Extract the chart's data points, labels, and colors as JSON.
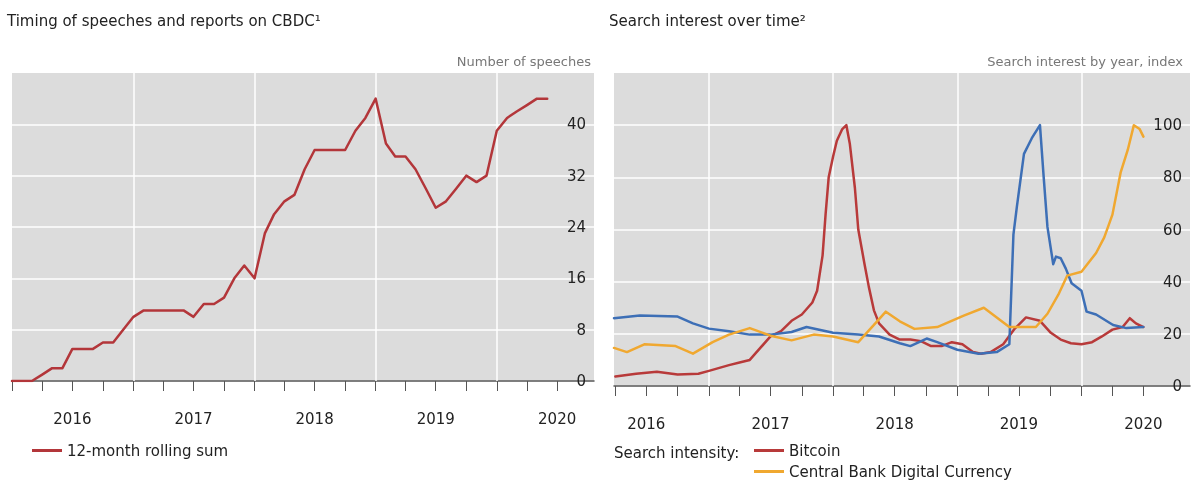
{
  "chart_data": [
    {
      "type": "line",
      "title": "Timing of speeches and reports on CBDC¹",
      "ylabel": "Number of speeches",
      "x": [
        "2016-01",
        "2016-02",
        "2016-03",
        "2016-04",
        "2016-05",
        "2016-06",
        "2016-07",
        "2016-08",
        "2016-09",
        "2016-10",
        "2016-11",
        "2016-12",
        "2017-01",
        "2017-02",
        "2017-03",
        "2017-04",
        "2017-05",
        "2017-06",
        "2017-07",
        "2017-08",
        "2017-09",
        "2017-10",
        "2017-11",
        "2017-12",
        "2018-01",
        "2018-02",
        "2018-03",
        "2018-04",
        "2018-05",
        "2018-06",
        "2018-07",
        "2018-08",
        "2018-09",
        "2018-10",
        "2018-11",
        "2018-12",
        "2019-01",
        "2019-02",
        "2019-03",
        "2019-04",
        "2019-05",
        "2019-06",
        "2019-07",
        "2019-08",
        "2019-09",
        "2019-10",
        "2019-11",
        "2019-12",
        "2020-01",
        "2020-02",
        "2020-03",
        "2020-04",
        "2020-05",
        "2020-06"
      ],
      "series": [
        {
          "name": "12-month rolling sum",
          "color": "#b3363a",
          "values": [
            0,
            0,
            0,
            1,
            2,
            2,
            5,
            5,
            5,
            6,
            6,
            8,
            10,
            11,
            11,
            11,
            11,
            11,
            10,
            12,
            12,
            13,
            16,
            18,
            16,
            23,
            26,
            28,
            29,
            33,
            36,
            36,
            36,
            36,
            39,
            41,
            44,
            37,
            35,
            35,
            33,
            30,
            27,
            28,
            30,
            32,
            31,
            32,
            39,
            41,
            42,
            43,
            44,
            44
          ]
        }
      ],
      "xlim": [
        "2016-01",
        "2020-10-20"
      ],
      "xticks": [
        {
          "value": "2016-01",
          "label": null
        },
        {
          "value": "2016-04",
          "label": null
        },
        {
          "value": "2016-07",
          "label": "2016"
        },
        {
          "value": "2016-10",
          "label": null
        },
        {
          "value": "2017-01",
          "label": null
        },
        {
          "value": "2017-04",
          "label": null
        },
        {
          "value": "2017-07",
          "label": "2017"
        },
        {
          "value": "2017-10",
          "label": null
        },
        {
          "value": "2018-01",
          "label": null
        },
        {
          "value": "2018-04",
          "label": null
        },
        {
          "value": "2018-07",
          "label": "2018"
        },
        {
          "value": "2018-10",
          "label": null
        },
        {
          "value": "2019-01",
          "label": null
        },
        {
          "value": "2019-04",
          "label": null
        },
        {
          "value": "2019-07",
          "label": "2019"
        },
        {
          "value": "2019-10",
          "label": null
        },
        {
          "value": "2020-01",
          "label": null
        },
        {
          "value": "2020-04",
          "label": null
        },
        {
          "value": "2020-07",
          "label": "2020"
        }
      ],
      "ylim": [
        0,
        48
      ],
      "yticks": [
        0,
        8,
        16,
        24,
        32,
        40
      ],
      "grid": "y",
      "legend": "bottom left",
      "marker": "none",
      "line_style": "solid",
      "ref_lines": [
        {
          "axis": "x",
          "value": "2017-01",
          "color": "#ffffff"
        },
        {
          "axis": "x",
          "value": "2018-01",
          "color": "#ffffff"
        },
        {
          "axis": "x",
          "value": "2019-01",
          "color": "#ffffff"
        },
        {
          "axis": "x",
          "value": "2020-01",
          "color": "#ffffff"
        }
      ]
    },
    {
      "type": "line",
      "title": "Search interest over time²",
      "ylabel": "Search interest by year, index",
      "legend_title": "Search intensity:",
      "series": [
        {
          "name": "Bitcoin",
          "color": "#b83a3a",
          "x": [
            "2016-04",
            "2016-06",
            "2016-08",
            "2016-10",
            "2016-12",
            "2017-01",
            "2017-03",
            "2017-04",
            "2017-05",
            "2017-06",
            "2017-07",
            "2017-08",
            "2017-09",
            "2017-10",
            "2017-11",
            "2017-11-15",
            "2017-12",
            "2017-12-10",
            "2017-12-19",
            "2018-01",
            "2018-01-12",
            "2018-01-28",
            "2018-02-09",
            "2018-02-19",
            "2018-03-06",
            "2018-03-16",
            "2018-04-03",
            "2018-04-16",
            "2018-05",
            "2018-05-16",
            "2018-06-16",
            "2018-07-16",
            "2018-08-16",
            "2018-09-16",
            "2018-10-16",
            "2018-11-16",
            "2018-12-16",
            "2019-01-16",
            "2019-02-16",
            "2019-03-12",
            "2019-04-09",
            "2019-05-16",
            "2019-06-19",
            "2019-07-22",
            "2019-09",
            "2019-10-03",
            "2019-11",
            "2019-12",
            "2020-01",
            "2020-02",
            "2020-03",
            "2020-04",
            "2020-05",
            "2020-05-22",
            "2020-06-09",
            "2020-07"
          ],
          "values": [
            3.6,
            4.7,
            5.5,
            4.4,
            4.7,
            5.8,
            8,
            9,
            10,
            14.6,
            19,
            21,
            25,
            27.4,
            32,
            36.5,
            50,
            66,
            80,
            88,
            94,
            98.5,
            100,
            93,
            76,
            60,
            47,
            38,
            29,
            24,
            19.7,
            17.8,
            17.8,
            17.2,
            15.3,
            15.3,
            16.8,
            16,
            13,
            12.4,
            13,
            16,
            22,
            26.3,
            25,
            20.4,
            17.8,
            16.4,
            16,
            16.8,
            19,
            21.6,
            22.6,
            26,
            24,
            22.6
          ]
        },
        {
          "color": "#3d6fb6",
          "x": [
            "2016-03-28",
            "2016-06-12",
            "2016-10",
            "2016-11-15",
            "2017-01",
            "2017-03",
            "2017-05",
            "2017-07",
            "2017-09",
            "2017-10-15",
            "2018-01",
            "2018-03-16",
            "2018-05-16",
            "2018-07-16",
            "2018-08-16",
            "2018-10-03",
            "2018-11-03",
            "2019-01",
            "2019-03-05",
            "2019-04-27",
            "2019-06-03",
            "2019-06-15",
            "2019-06-25",
            "2019-07-16",
            "2019-08-08",
            "2019-09",
            "2019-09-12",
            "2019-09-23",
            "2019-10-10",
            "2019-10-18",
            "2019-11",
            "2019-11-16",
            "2019-12-03",
            "2020-01",
            "2020-01-16",
            "2020-02-13",
            "2020-04-03",
            "2020-05-12",
            "2020-07"
          ],
          "values": [
            26,
            27,
            26.6,
            24,
            22,
            21,
            19.7,
            19.7,
            20.7,
            22.6,
            20.4,
            19.7,
            19,
            16.4,
            15.3,
            18.2,
            16.8,
            13.9,
            12.4,
            13,
            16,
            58,
            68.6,
            89,
            95,
            100,
            80,
            61,
            46.7,
            49.6,
            49,
            45,
            39.4,
            36.5,
            28.5,
            27.4,
            23.4,
            22.2,
            22.6
          ]
        },
        {
          "name": "Central Bank Digital Currency",
          "color": "#f0a830",
          "x": [
            "2016-03-28",
            "2016-05-05",
            "2016-06-25",
            "2016-09-25",
            "2016-11-15",
            "2017-01-12",
            "2017-03",
            "2017-05",
            "2017-07",
            "2017-09",
            "2017-11-05",
            "2018-01",
            "2018-03-16",
            "2018-05",
            "2018-06-05",
            "2018-07-16",
            "2018-08-28",
            "2018-11-03",
            "2019-01-20",
            "2019-03-20",
            "2019-04-27",
            "2019-06-03",
            "2019-07-16",
            "2019-08-20",
            "2019-09-23",
            "2019-10-25",
            "2019-11-20",
            "2020-01",
            "2020-02-13",
            "2020-03-08",
            "2020-04-01",
            "2020-04-25",
            "2020-05-16",
            "2020-06-03",
            "2020-06-20",
            "2020-07"
          ],
          "values": [
            14.6,
            13,
            16,
            15.3,
            12.4,
            16.8,
            19.7,
            22.2,
            19.3,
            17.5,
            19.7,
            19,
            16.8,
            23.4,
            28.5,
            24.8,
            21.9,
            22.6,
            27,
            30,
            26.3,
            22.6,
            22.6,
            22.6,
            27.7,
            35,
            42.3,
            43.8,
            51,
            57,
            65.7,
            81.8,
            90.5,
            100,
            98.5,
            95.6
          ]
        }
      ],
      "xlim": [
        "2016-03-28",
        "2020-11-15"
      ],
      "xticks": [
        {
          "value": "2016-04",
          "label": null
        },
        {
          "value": "2016-07",
          "label": "2016"
        },
        {
          "value": "2016-10",
          "label": null
        },
        {
          "value": "2017-01",
          "label": null
        },
        {
          "value": "2017-04",
          "label": null
        },
        {
          "value": "2017-07",
          "label": "2017"
        },
        {
          "value": "2017-10",
          "label": null
        },
        {
          "value": "2018-01",
          "label": null
        },
        {
          "value": "2018-04",
          "label": null
        },
        {
          "value": "2018-07",
          "label": "2018"
        },
        {
          "value": "2018-10",
          "label": null
        },
        {
          "value": "2019-01",
          "label": null
        },
        {
          "value": "2019-04",
          "label": null
        },
        {
          "value": "2019-07",
          "label": "2019"
        },
        {
          "value": "2019-10",
          "label": null
        },
        {
          "value": "2020-01",
          "label": null
        },
        {
          "value": "2020-04",
          "label": null
        },
        {
          "value": "2020-07",
          "label": "2020"
        }
      ],
      "ylim": [
        0,
        120
      ],
      "yticks": [
        0,
        20,
        40,
        60,
        80,
        100
      ],
      "grid": "y",
      "legend": "bottom",
      "marker": "none",
      "line_style": "solid",
      "ref_lines": [
        {
          "axis": "x",
          "value": "2017-01",
          "color": "#ffffff"
        },
        {
          "axis": "x",
          "value": "2018-01",
          "color": "#ffffff"
        },
        {
          "axis": "x",
          "value": "2019-01",
          "color": "#ffffff"
        },
        {
          "axis": "x",
          "value": "2020-01",
          "color": "#ffffff"
        }
      ]
    }
  ]
}
